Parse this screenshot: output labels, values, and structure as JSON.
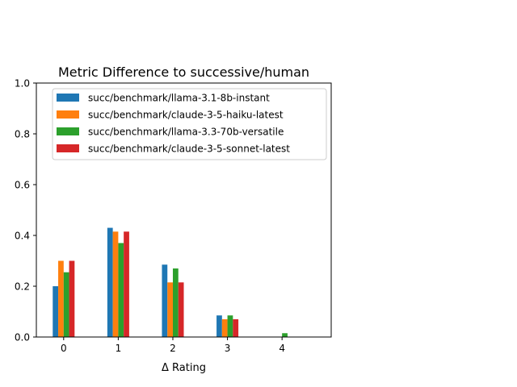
{
  "chart_data": {
    "type": "bar",
    "title": "Metric Difference to successive/human",
    "xlabel": "Δ Rating",
    "ylabel": "",
    "categories": [
      "0",
      "1",
      "2",
      "3",
      "4"
    ],
    "ylim": [
      0,
      1.0
    ],
    "xlim": [
      -0.5,
      4.9
    ],
    "y_ticks": [
      "0.0",
      "0.2",
      "0.4",
      "0.6",
      "0.8",
      "1.0"
    ],
    "grid": false,
    "legend_position": "top-left",
    "series": [
      {
        "name": "succ/benchmark/llama-3.1-8b-instant",
        "color": "#1f77b4",
        "values": [
          0.2,
          0.43,
          0.285,
          0.085,
          0
        ]
      },
      {
        "name": "succ/benchmark/claude-3-5-haiku-latest",
        "color": "#ff7f0e",
        "values": [
          0.3,
          0.415,
          0.215,
          0.07,
          0
        ]
      },
      {
        "name": "succ/benchmark/llama-3.3-70b-versatile",
        "color": "#2ca02c",
        "values": [
          0.255,
          0.37,
          0.27,
          0.085,
          0.015
        ]
      },
      {
        "name": "succ/benchmark/claude-3-5-sonnet-latest",
        "color": "#d62728",
        "values": [
          0.3,
          0.415,
          0.215,
          0.07,
          0
        ]
      }
    ]
  }
}
